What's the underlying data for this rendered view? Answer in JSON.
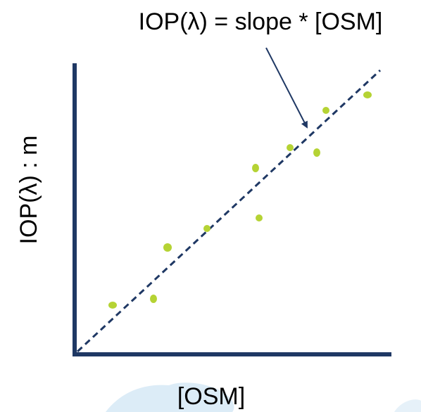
{
  "annotation": "IOP(λ) = slope * [OSM]",
  "x_label": "[OSM]",
  "y_label": "IOP(λ) : m"
}
